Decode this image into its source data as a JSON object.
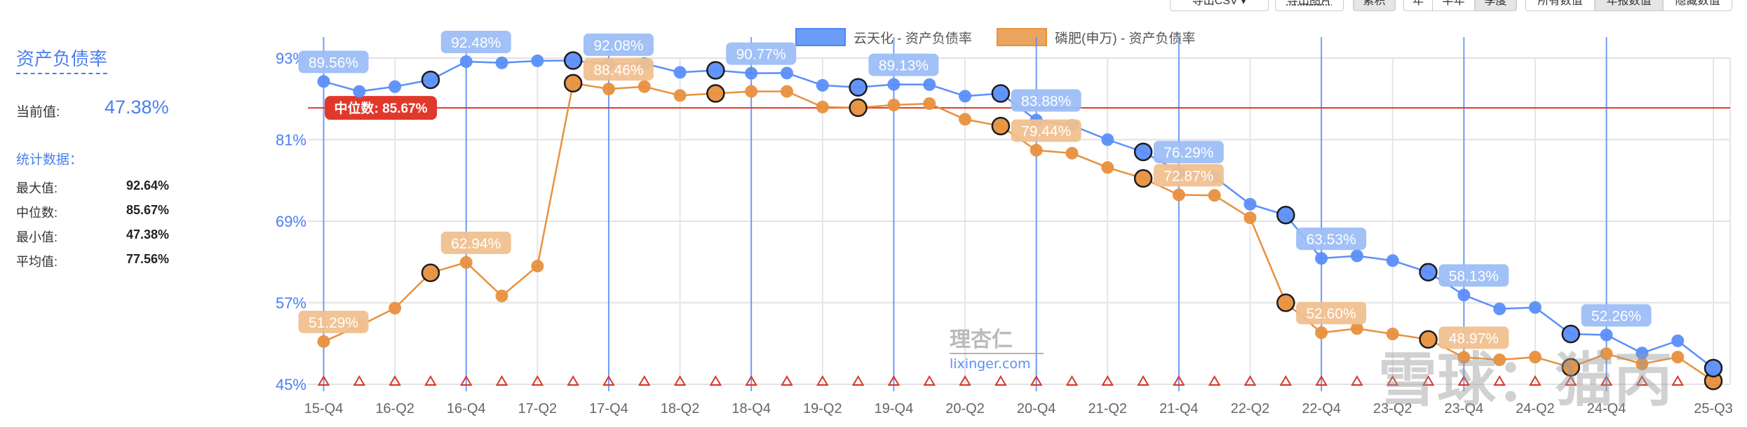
{
  "sidebar": {
    "title": "资产负债率",
    "current_label": "当前值:",
    "current_value": "47.38%",
    "stats_title": "统计数据：",
    "stats": [
      {
        "label": "最大值:",
        "value": "92.64%"
      },
      {
        "label": "中位数:",
        "value": "85.67%"
      },
      {
        "label": "最小值:",
        "value": "47.38%"
      },
      {
        "label": "平均值:",
        "value": "77.56%"
      }
    ]
  },
  "toolbar": {
    "export_csv": "导出CSV ▾",
    "export_image": "导出图片",
    "cumulative": "累积",
    "period_year": "年",
    "period_half": "半年",
    "period_quarter": "季度",
    "values_all": "所有数值",
    "values_annual": "年报数值",
    "values_hide": "隐藏数值"
  },
  "watermarks": {
    "lixinger_cn": "理杏仁",
    "lixinger_url": "lixinger.com",
    "xueqiu": "雪球：猫丙"
  },
  "chart_data": {
    "type": "line",
    "title": "资产负债率",
    "ylim": [
      45,
      93
    ],
    "yticks": [
      45,
      57,
      69,
      81,
      93
    ],
    "ytick_labels": [
      "45%",
      "57%",
      "69%",
      "81%",
      "93%"
    ],
    "grid": true,
    "legend_position": "top-center",
    "categories": [
      "15-Q4",
      "16-Q1",
      "16-Q2",
      "16-Q3",
      "16-Q4",
      "17-Q1",
      "17-Q2",
      "17-Q3",
      "17-Q4",
      "18-Q1",
      "18-Q2",
      "18-Q3",
      "18-Q4",
      "19-Q1",
      "19-Q2",
      "19-Q3",
      "19-Q4",
      "20-Q1",
      "20-Q2",
      "20-Q3",
      "20-Q4",
      "21-Q1",
      "21-Q2",
      "21-Q3",
      "21-Q4",
      "22-Q1",
      "22-Q2",
      "22-Q3",
      "22-Q4",
      "23-Q1",
      "23-Q2",
      "23-Q3",
      "23-Q4",
      "24-Q1",
      "24-Q2",
      "24-Q3",
      "24-Q4",
      "25-Q1",
      "25-Q2",
      "25-Q3"
    ],
    "xtick_labels": [
      "15-Q4",
      "16-Q2",
      "16-Q4",
      "17-Q2",
      "17-Q4",
      "18-Q2",
      "18-Q4",
      "19-Q2",
      "19-Q4",
      "20-Q2",
      "20-Q4",
      "21-Q2",
      "21-Q4",
      "22-Q2",
      "22-Q4",
      "23-Q2",
      "23-Q4",
      "24-Q2",
      "24-Q4",
      "25-Q3"
    ],
    "year_marker_quarters": [
      "15-Q4",
      "16-Q4",
      "17-Q4",
      "18-Q4",
      "19-Q4",
      "20-Q4",
      "21-Q4",
      "22-Q4",
      "23-Q4",
      "24-Q4"
    ],
    "highlight_quarters": [
      "16-Q3",
      "17-Q3",
      "18-Q3",
      "19-Q3",
      "20-Q3",
      "21-Q3",
      "22-Q3",
      "23-Q3",
      "24-Q3",
      "25-Q3"
    ],
    "series": [
      {
        "name": "云天化 - 资产负债率",
        "color": "#5b8ff9",
        "label_color": "#9cbef7",
        "values": [
          89.56,
          88.1,
          88.8,
          89.8,
          92.48,
          92.3,
          92.6,
          92.64,
          92.08,
          92.2,
          90.9,
          91.2,
          90.77,
          90.8,
          89.0,
          88.7,
          89.13,
          89.1,
          87.4,
          87.8,
          83.88,
          83.1,
          81.0,
          79.2,
          76.29,
          75.5,
          71.5,
          69.9,
          63.53,
          63.9,
          63.2,
          61.5,
          58.13,
          56.1,
          56.3,
          52.4,
          52.26,
          49.6,
          51.4,
          47.38
        ],
        "labeled_quarters": [
          "15-Q4",
          "16-Q4",
          "17-Q4",
          "18-Q4",
          "19-Q4",
          "20-Q4",
          "21-Q4",
          "22-Q4",
          "23-Q4",
          "24-Q4"
        ]
      },
      {
        "name": "磷肥(申万) - 资产负债率",
        "color": "#e8913f",
        "label_color": "#f0c08f",
        "values": [
          51.29,
          53.6,
          56.2,
          61.4,
          62.94,
          58.0,
          62.4,
          89.3,
          88.46,
          88.8,
          87.5,
          87.8,
          88.1,
          88.1,
          85.8,
          85.7,
          86.1,
          86.3,
          84.0,
          83.0,
          79.44,
          79.0,
          76.9,
          75.3,
          72.87,
          72.8,
          69.5,
          57.0,
          52.6,
          53.2,
          52.4,
          51.6,
          48.97,
          48.6,
          49.0,
          47.5,
          49.5,
          48.0,
          49.0,
          45.5
        ],
        "labeled_quarters": [
          "15-Q4",
          "16-Q4",
          "17-Q4",
          "20-Q4",
          "21-Q4",
          "22-Q4",
          "23-Q4"
        ]
      }
    ],
    "median": {
      "value": 85.67,
      "label": "中位数: 85.67%",
      "color": "#e0392b"
    }
  }
}
